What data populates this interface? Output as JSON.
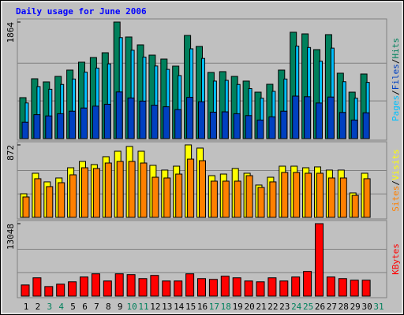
{
  "chart_data": {
    "type": "bar",
    "title": "Daily usage for June 2006",
    "categories": [
      "1",
      "2",
      "3",
      "4",
      "5",
      "6",
      "7",
      "8",
      "9",
      "10",
      "11",
      "12",
      "13",
      "14",
      "15",
      "16",
      "17",
      "18",
      "19",
      "20",
      "21",
      "22",
      "23",
      "24",
      "25",
      "26",
      "27",
      "28",
      "29",
      "30",
      "31"
    ],
    "category_colors": [
      "#000000",
      "#000000",
      "#00805c",
      "#00805c",
      "#000000",
      "#000000",
      "#000000",
      "#000000",
      "#000000",
      "#00805c",
      "#00805c",
      "#000000",
      "#000000",
      "#000000",
      "#000000",
      "#000000",
      "#00805c",
      "#00805c",
      "#000000",
      "#000000",
      "#000000",
      "#000000",
      "#000000",
      "#00805c",
      "#00805c",
      "#000000",
      "#000000",
      "#000000",
      "#000000",
      "#000000",
      "#00805c"
    ],
    "legend_separator": "/",
    "panels": [
      {
        "ylim": [
          0,
          1864
        ],
        "yticks": [
          1864
        ],
        "series": [
          {
            "name": "Pages",
            "color": "#00c0ff",
            "values": [
              570,
              832,
              789,
              866,
              953,
              1063,
              1128,
              1195,
              1615,
              1414,
              1304,
              1161,
              1107,
              1008,
              1436,
              1282,
              920,
              932,
              866,
              800,
              646,
              756,
              953,
              1480,
              1457,
              1238,
              1447,
              910,
              646,
              899,
              null
            ]
          },
          {
            "name": "Files",
            "color": "#0040c0",
            "values": [
              262,
              383,
              363,
              398,
              438,
              489,
              519,
              549,
              746,
              650,
              600,
              534,
              509,
              464,
              660,
              590,
              423,
              428,
              398,
              368,
              297,
              348,
              438,
              680,
              670,
              569,
              665,
              418,
              297,
              413,
              null
            ]
          },
          {
            "name": "Hits",
            "color": "#00805c",
            "values": [
              655,
              957,
              907,
              995,
              1096,
              1222,
              1297,
              1373,
              1864,
              1625,
              1499,
              1335,
              1272,
              1159,
              1650,
              1474,
              1058,
              1071,
              995,
              920,
              743,
              869,
              1096,
              1701,
              1675,
              1423,
              1663,
              1046,
              743,
              1033,
              null
            ]
          }
        ]
      },
      {
        "ylim": [
          0,
          872
        ],
        "yticks": [
          872
        ],
        "series": [
          {
            "name": "Sites",
            "color": "#ff8000",
            "values": [
              246,
              465,
              370,
              417,
              512,
              597,
              588,
              654,
              673,
              673,
              654,
              483,
              474,
              521,
              701,
              682,
              436,
              436,
              436,
              502,
              360,
              427,
              540,
              540,
              531,
              531,
              474,
              474,
              265,
              465,
              null
            ]
          },
          {
            "name": "Visits",
            "color": "#ffff00",
            "values": [
              284,
              531,
              427,
              474,
              597,
              673,
              635,
              730,
              796,
              853,
              796,
              626,
              569,
              616,
              872,
              834,
              502,
              521,
              588,
              531,
              389,
              483,
              616,
              616,
              597,
              607,
              569,
              569,
              294,
              531,
              null
            ]
          }
        ]
      },
      {
        "ylim": [
          0,
          13048
        ],
        "yticks": [
          13048
        ],
        "series": [
          {
            "name": "KBytes",
            "color": "#ff0000",
            "values": [
              2008,
              3299,
              1721,
              2151,
              2581,
              3442,
              4016,
              2725,
              4016,
              3872,
              3155,
              3729,
              2725,
              2725,
              4016,
              3155,
              3012,
              3585,
              3299,
              2725,
              2581,
              3299,
              2725,
              3442,
              4446,
              13048,
              3442,
              3155,
              2868,
              2868,
              null
            ]
          }
        ]
      }
    ]
  }
}
